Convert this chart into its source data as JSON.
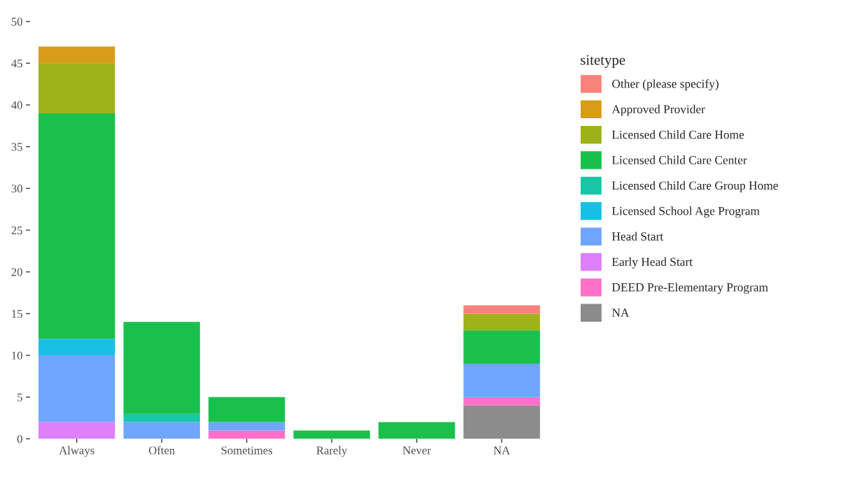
{
  "chart_data": {
    "type": "bar",
    "stacked": true,
    "legend_title": "sitetype",
    "legend": "right",
    "grid": false,
    "categories": [
      "Always",
      "Often",
      "Sometimes",
      "Rarely",
      "Never",
      "NA"
    ],
    "ylim": [
      0,
      50
    ],
    "yticks": [
      0,
      5,
      10,
      15,
      20,
      25,
      30,
      35,
      40,
      45,
      50
    ],
    "series": [
      {
        "name": "NA",
        "color": "#7f7f7f",
        "values": [
          0,
          0,
          0,
          0,
          0,
          4
        ]
      },
      {
        "name": "DEED Pre-Elementary Program",
        "color": "#ff61c3",
        "values": [
          0,
          0,
          1,
          0,
          0,
          1
        ]
      },
      {
        "name": "Early Head Start",
        "color": "#db72fb",
        "values": [
          2,
          0,
          0,
          0,
          0,
          0
        ]
      },
      {
        "name": "Head Start",
        "color": "#619cff",
        "values": [
          8,
          2,
          1,
          0,
          0,
          4
        ]
      },
      {
        "name": "Licensed School Age Program",
        "color": "#00b9e3",
        "values": [
          2,
          0,
          0,
          0,
          0,
          0
        ]
      },
      {
        "name": "Licensed Child Care Group Home",
        "color": "#00c19f",
        "values": [
          0,
          1,
          0,
          0,
          0,
          0
        ]
      },
      {
        "name": "Licensed Child Care Center",
        "color": "#00ba38",
        "values": [
          27,
          11,
          3,
          1,
          2,
          4
        ]
      },
      {
        "name": "Licensed Child Care Home",
        "color": "#93aa00",
        "values": [
          6,
          0,
          0,
          0,
          0,
          2
        ]
      },
      {
        "name": "Approved Provider",
        "color": "#d39200",
        "values": [
          2,
          0,
          0,
          0,
          0,
          0
        ]
      },
      {
        "name": "Other (please specify)",
        "color": "#f8766d",
        "values": [
          0,
          0,
          0,
          0,
          0,
          1
        ]
      }
    ]
  }
}
